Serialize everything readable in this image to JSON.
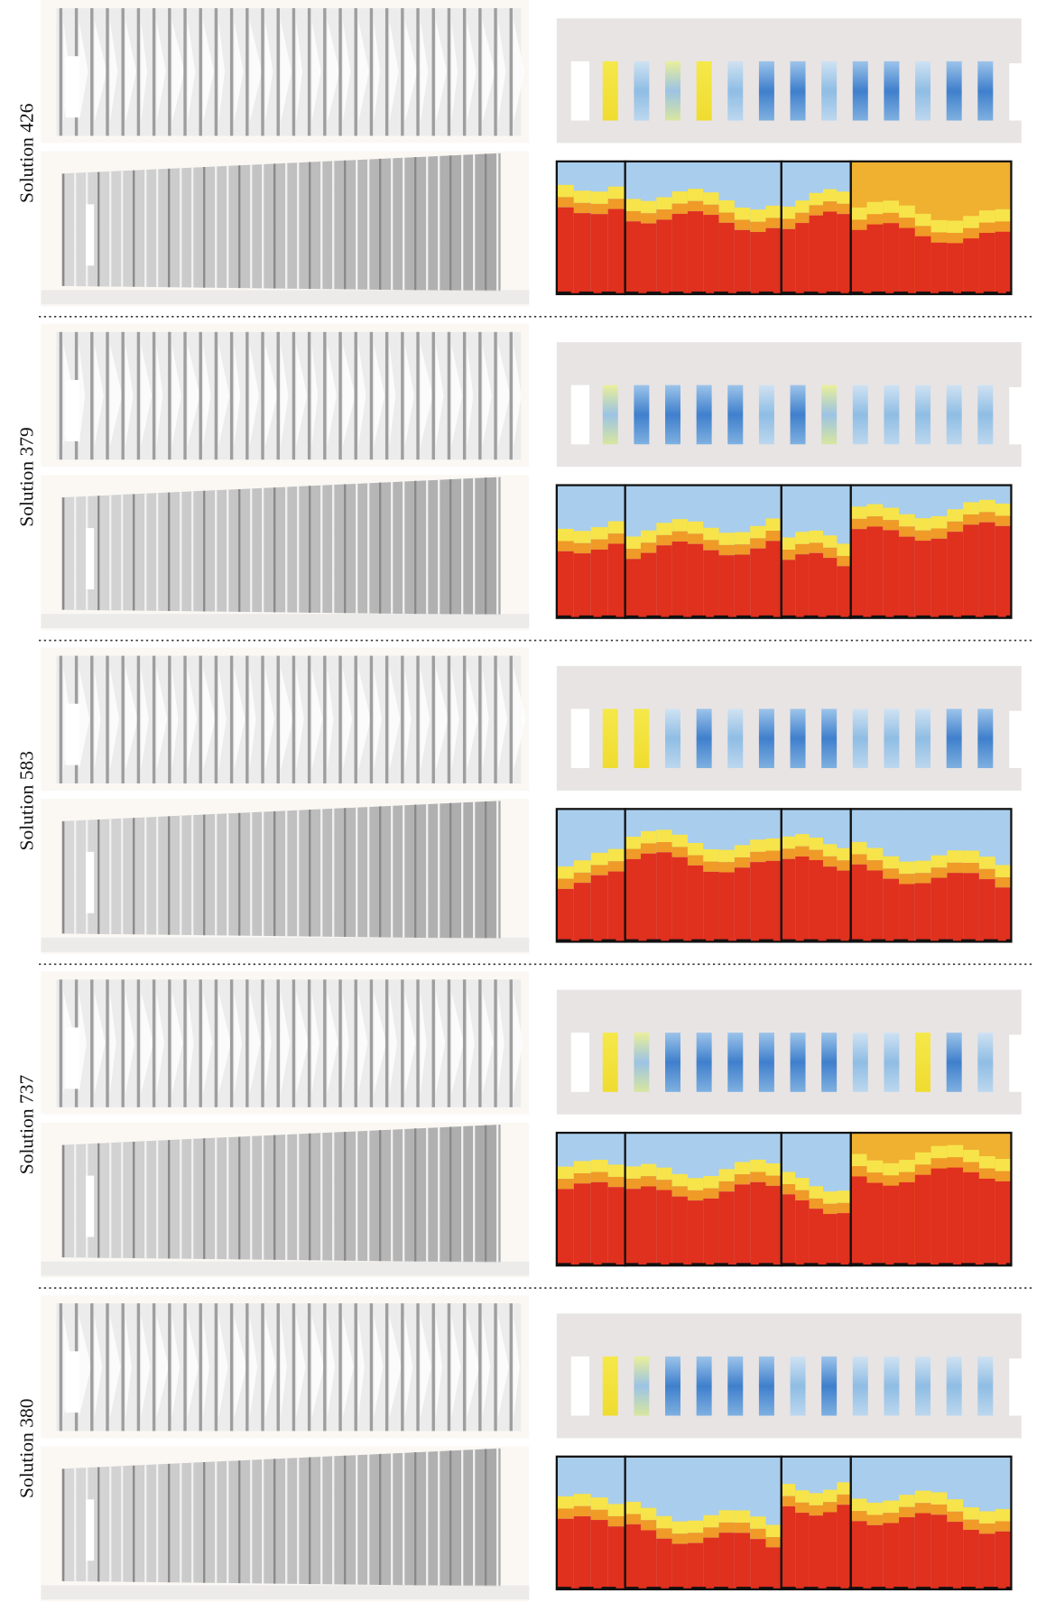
{
  "rows": [
    {
      "label": "Solution 426"
    },
    {
      "label": "Solution 379"
    },
    {
      "label": "Solution 583"
    },
    {
      "label": "Solution 737"
    },
    {
      "label": "Solution 380"
    }
  ]
}
